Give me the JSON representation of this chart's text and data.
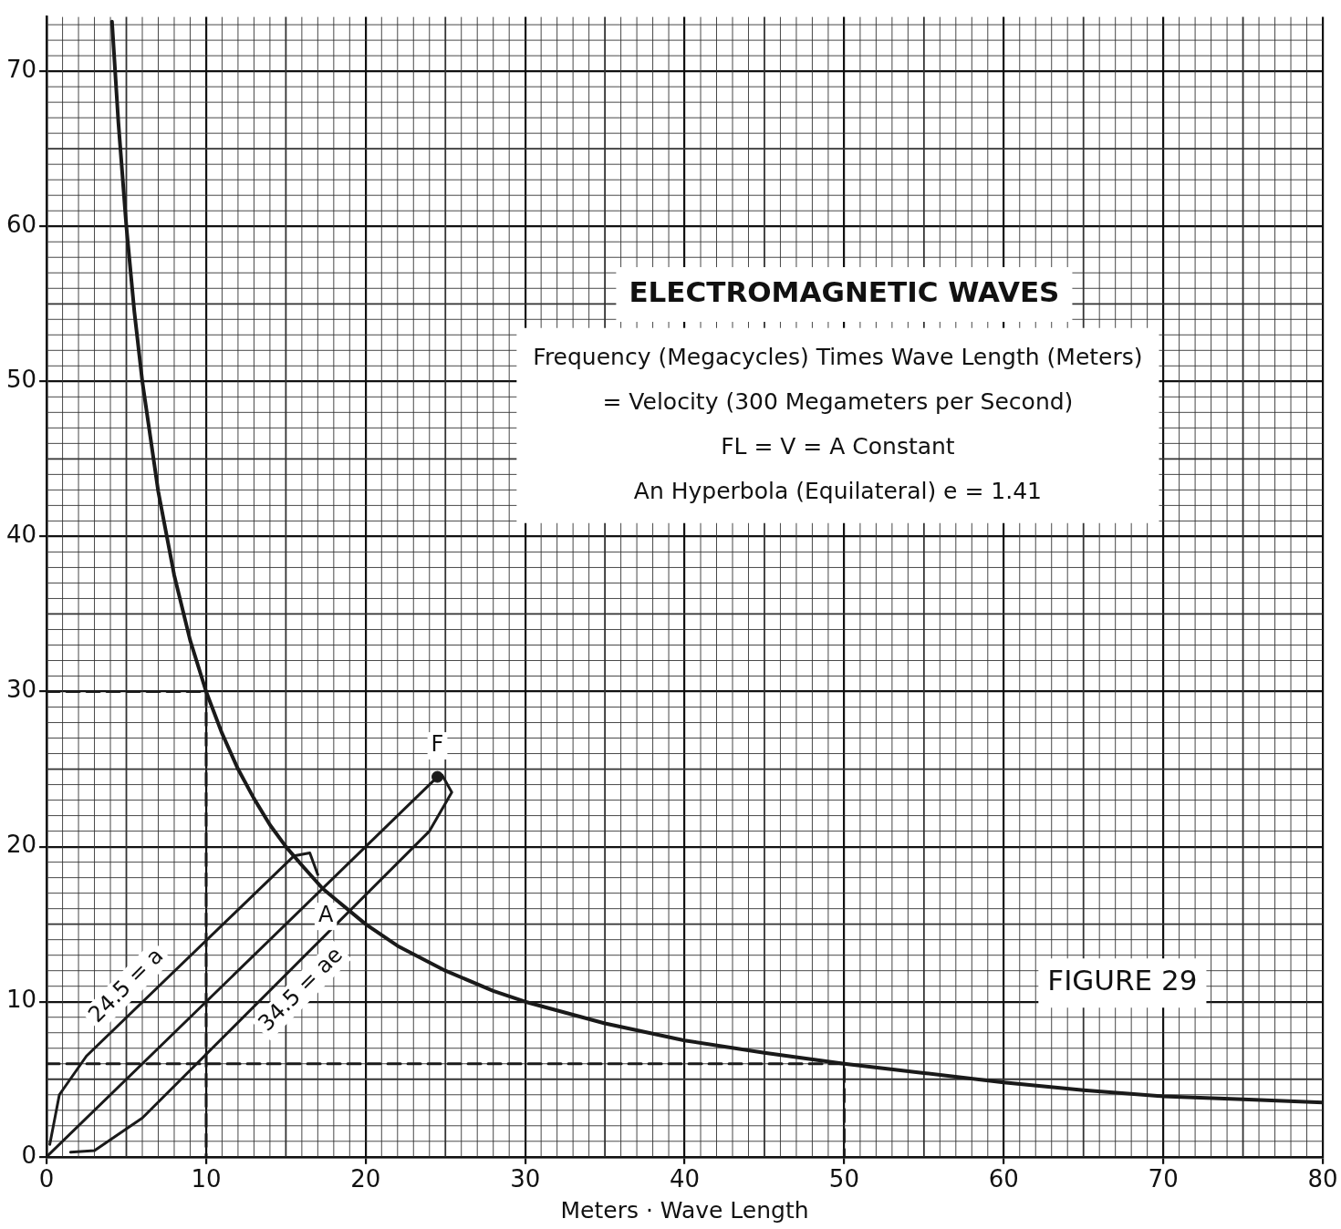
{
  "chart_data": {
    "type": "line",
    "title": "ELECTROMAGNETIC WAVES",
    "xlabel": "Meters · Wave Length",
    "xlim": [
      0,
      80
    ],
    "ylim": [
      0,
      73.5
    ],
    "xticks": [
      0,
      10,
      20,
      30,
      40,
      50,
      60,
      70,
      80
    ],
    "yticks": [
      0,
      10,
      20,
      30,
      40,
      50,
      60,
      70
    ],
    "grid": true,
    "legend": false,
    "series": [
      {
        "color": "#1a1a1a",
        "x": [
          4.1,
          4.5,
          5,
          5.5,
          6,
          7,
          8,
          9,
          10,
          11,
          12,
          13,
          14,
          15,
          16,
          17.3,
          18,
          20,
          22,
          25,
          28,
          30,
          35,
          40,
          45,
          50,
          55,
          60,
          65,
          70,
          75,
          80
        ],
        "values": [
          73.2,
          66.7,
          60,
          54.5,
          50,
          42.9,
          37.5,
          33.3,
          30,
          27.3,
          25,
          23.1,
          21.4,
          20,
          18.8,
          17.3,
          16.7,
          15,
          13.6,
          12,
          10.7,
          10,
          8.6,
          7.5,
          6.7,
          6,
          5.4,
          4.8,
          4.3,
          3.9,
          3.7,
          3.5
        ]
      },
      {
        "color": "#1a1a1a",
        "line_style": "dashed",
        "x": [
          0,
          10,
          10
        ],
        "values": [
          30,
          30,
          0
        ]
      },
      {
        "color": "#1a1a1a",
        "line_style": "dashed",
        "x": [
          0,
          50,
          50
        ],
        "values": [
          6,
          6,
          0
        ]
      },
      {
        "color": "#1a1a1a",
        "x": [
          0,
          24.5
        ],
        "values": [
          0,
          24.5
        ]
      },
      {
        "color": "#1a1a1a",
        "x": [
          0.2,
          0.8,
          2.5,
          15.5,
          16.5,
          17
        ],
        "values": [
          0.8,
          4,
          6.5,
          19.4,
          19.6,
          18.2
        ]
      },
      {
        "color": "#1a1a1a",
        "x": [
          1.5,
          3,
          6,
          24,
          25.4,
          24.8
        ],
        "values": [
          0.3,
          0.4,
          2.5,
          21,
          23.5,
          24.6
        ]
      },
      {
        "type": "scatter",
        "marker": "circle",
        "color": "#1a1a1a",
        "x": [
          24.5
        ],
        "values": [
          24.5
        ]
      }
    ],
    "annotations": [
      "Frequency (Megacycles) Times Wave Length (Meters)",
      "= Velocity (300 Megameters per Second)",
      "FL = V = A Constant",
      "An Hyperbola (Equilateral) e = 1.41",
      "FIGURE 29",
      {
        "text": "F",
        "x": 24.5,
        "y": 26.5
      },
      {
        "text": "A",
        "x": 17.5,
        "y": 15.5
      },
      {
        "text": "24.5 = a",
        "x": 6,
        "y": 10
      },
      {
        "text": "34.5 = ae",
        "x": 15,
        "y": 11.75
      }
    ]
  }
}
